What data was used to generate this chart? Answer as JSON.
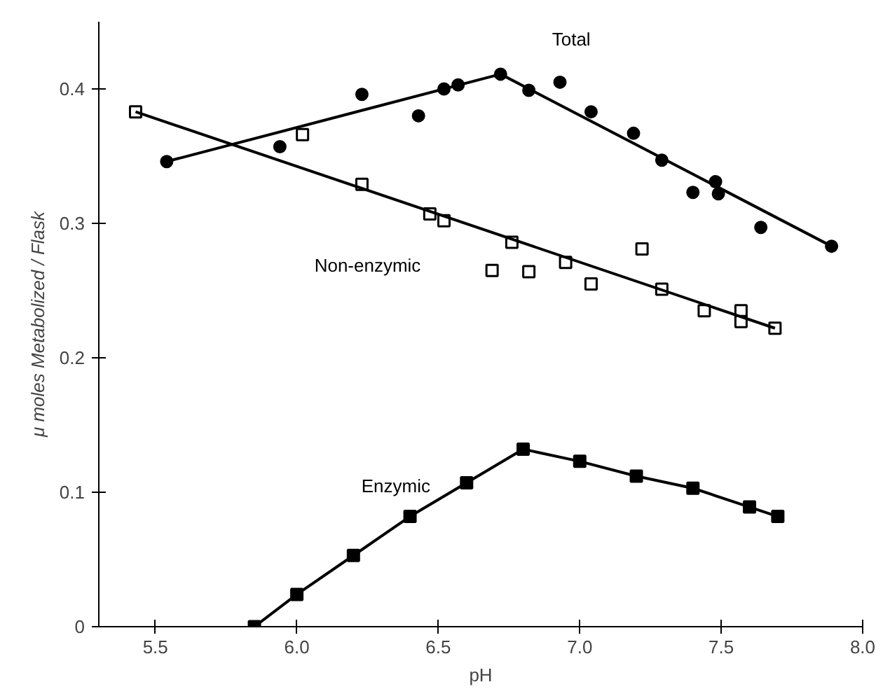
{
  "chart_data": {
    "type": "scatter",
    "xlabel": "pH",
    "ylabel": "μ moles Metabolized / Flask",
    "xlim": [
      5.3,
      8.0
    ],
    "ylim": [
      0,
      0.45
    ],
    "xticks": [
      5.5,
      {
        "value": 6,
        "label": "6.0"
      },
      6.5,
      {
        "value": 7,
        "label": "7.0"
      },
      7.5,
      {
        "value": 8,
        "label": "8.0"
      }
    ],
    "yticks": [
      0,
      0.1,
      0.2,
      0.3,
      0.4
    ],
    "grid": false,
    "series": [
      {
        "name": "Total",
        "marker": "circle",
        "color": "#000000",
        "x": [
          5.54,
          5.94,
          6.23,
          6.43,
          6.52,
          6.57,
          6.72,
          6.82,
          6.93,
          7.04,
          7.19,
          7.29,
          7.4,
          7.48,
          7.49,
          7.64,
          7.89
        ],
        "values": [
          0.346,
          0.357,
          0.396,
          0.38,
          0.4,
          0.403,
          0.411,
          0.399,
          0.405,
          0.383,
          0.367,
          0.347,
          0.323,
          0.331,
          0.322,
          0.297,
          0.283
        ]
      },
      {
        "type": "line",
        "color": "#000000",
        "x": [
          5.54,
          6.72,
          7.89
        ],
        "values": [
          0.346,
          0.411,
          0.283
        ]
      },
      {
        "name": "Non-enzymic",
        "marker": "square",
        "color": "#000000",
        "x": [
          5.43,
          6.02,
          6.23,
          6.47,
          6.52,
          6.76,
          6.69,
          6.82,
          6.95,
          7.04,
          7.22,
          7.29,
          7.44,
          7.57,
          7.57,
          7.69
        ],
        "values": [
          0.383,
          0.366,
          0.329,
          0.307,
          0.302,
          0.286,
          0.265,
          0.264,
          0.271,
          0.255,
          0.281,
          0.251,
          0.235,
          0.235,
          0.227,
          0.222
        ]
      },
      {
        "type": "line",
        "color": "#000000",
        "x": [
          5.43,
          7.69
        ],
        "values": [
          0.383,
          0.222
        ]
      },
      {
        "name": "Enzymic",
        "type": "line",
        "marker": "square",
        "color": "#000000",
        "x": [
          5.85,
          6.0,
          6.2,
          6.4,
          6.6,
          6.8,
          7.0,
          7.2,
          7.4,
          7.6,
          7.7
        ],
        "values": [
          0.0,
          0.024,
          0.053,
          0.082,
          0.107,
          0.132,
          0.123,
          0.112,
          0.103,
          0.089,
          0.082
        ]
      }
    ]
  }
}
